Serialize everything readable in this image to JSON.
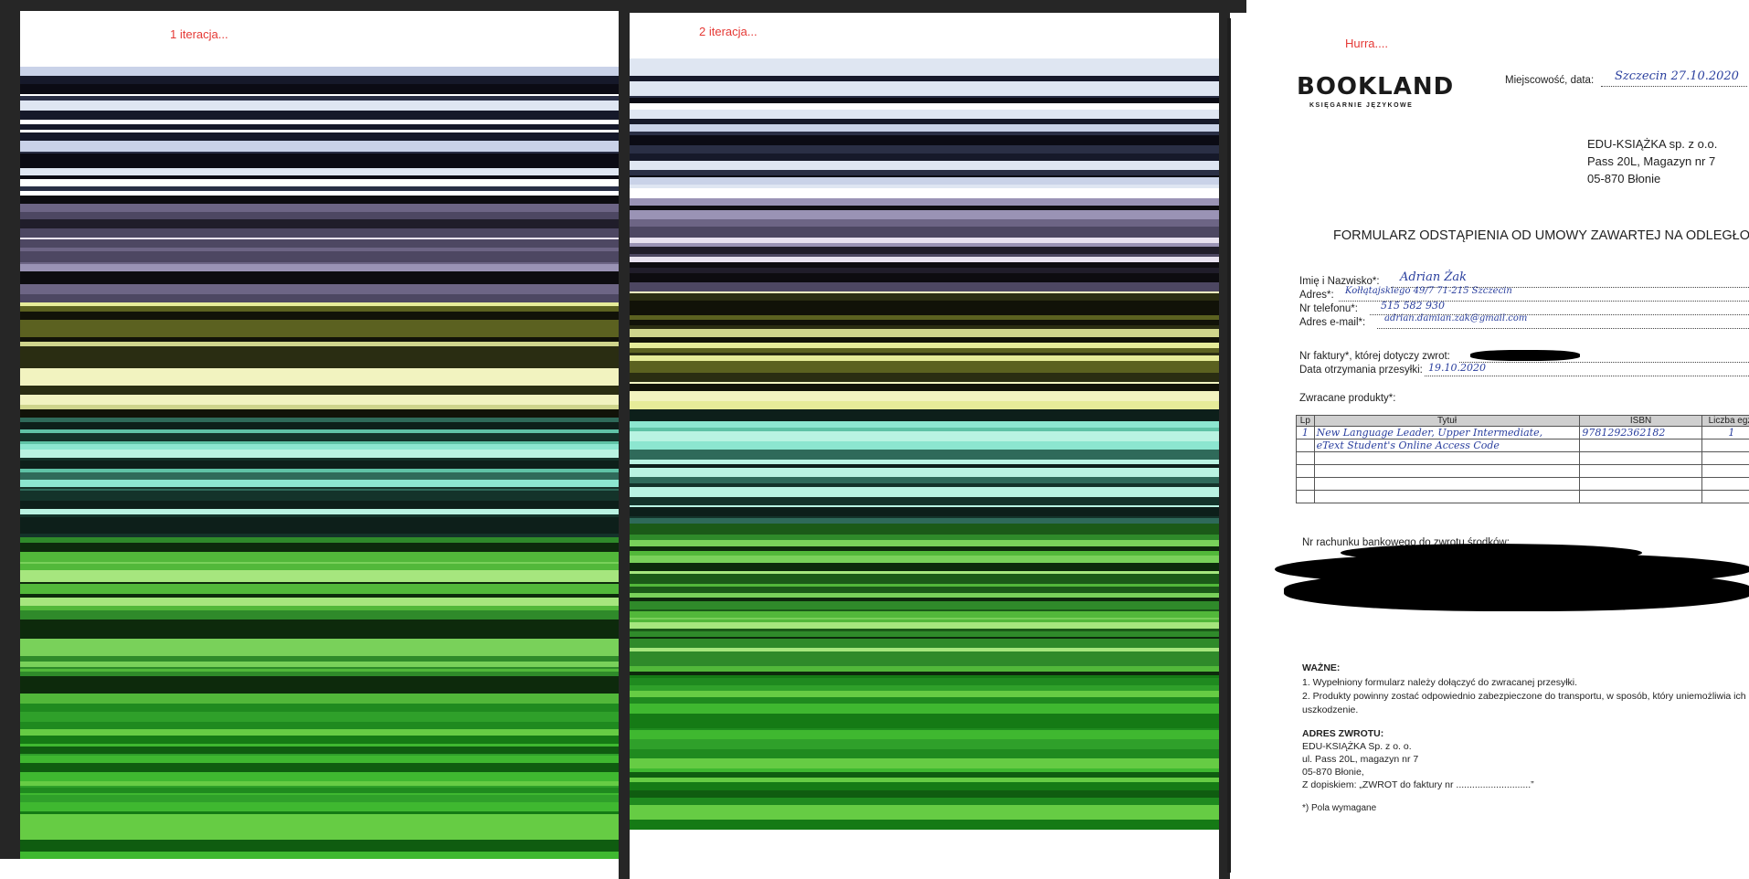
{
  "labels": {
    "iter1": "1 iteracja...",
    "iter2": "2 iteracja...",
    "done": "Hurra...."
  },
  "document": {
    "logo": "BOOKLAND",
    "logo_sub": "KSIĘGARNIE JĘZYKOWE",
    "place_date_label": "Miejscowość, data:",
    "place_date_value": "Szczecin 27.10.2020",
    "company": [
      "EDU-KSIĄŻKA sp. z o.o.",
      "Pass 20L, Magazyn nr 7",
      "05-870 Błonie"
    ],
    "title": "FORMULARZ ODSTĄPIENIA OD UMOWY ZAWARTEJ NA ODLEGŁOŚĆ",
    "fields": {
      "name_label": "Imię i Nazwisko*:",
      "name_value": "Adrian Żak",
      "address_label": "Adres*:",
      "address_value": "Kołłątajskiego 49/7 71-215 Szczecin",
      "phone_label": "Nr telefonu*:",
      "phone_value": "515 582 930",
      "email_label": "Adres e-mail*:",
      "email_value": "adrian.damian.zak@gmail.com",
      "invoice_label": "Nr faktury*, której dotyczy zwrot:",
      "received_label": "Data otrzymania przesyłki:",
      "received_value": "19.10.2020"
    },
    "products_label": "Zwracane produkty*:",
    "table": {
      "headers": [
        "Lp",
        "Tytuł",
        "ISBN",
        "Liczba egz."
      ],
      "rows": [
        [
          "1",
          "New Language Leader, Upper Intermediate,",
          "9781292362182",
          "1"
        ],
        [
          "",
          "eText Student's Online Access Code",
          "",
          ""
        ],
        [
          "",
          "",
          "",
          ""
        ],
        [
          "",
          "",
          "",
          ""
        ],
        [
          "",
          "",
          "",
          ""
        ],
        [
          "",
          "",
          "",
          ""
        ]
      ]
    },
    "bank_label": "Nr rachunku bankowego do zwrotu środków:",
    "important_title": "WAŻNE:",
    "important": [
      "1. Wypełniony formularz należy dołączyć do zwracanej przesyłki.",
      "2. Produkty powinny zostać odpowiednio zabezpieczone do transportu, w sposób, który uniemożliwia ich",
      "uszkodzenie."
    ],
    "return_title": "ADRES ZWROTU:",
    "return_lines": [
      "EDU-KSIĄŻKA Sp. z o. o.",
      "ul. Pass 20L, magazyn nr 7",
      "05-870 Błonie,",
      "Z dopiskiem: „ZWROT do faktury nr ............................”"
    ],
    "required_note": "*) Pola wymagane"
  }
}
